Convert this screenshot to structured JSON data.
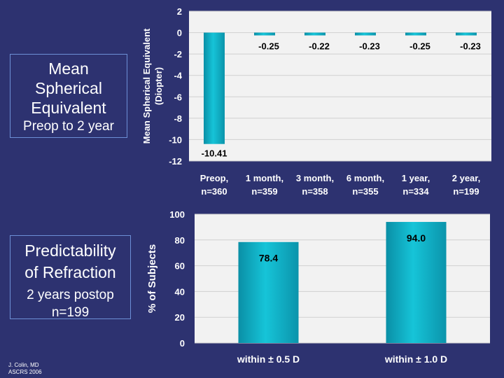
{
  "left_panel": {
    "box1_lines": [
      "Mean",
      "Spherical",
      "Equivalent"
    ],
    "box1_subtitle": "Preop to 2 year",
    "box2_lines": [
      "Predictability",
      "of Refraction"
    ],
    "box2_subtitle_lines": [
      "2 years postop",
      "n=199"
    ],
    "credit_lines": [
      "J. Colin, MD",
      "ASCRS 2006"
    ]
  },
  "colors": {
    "background": "#2d3270",
    "bar": "#16c4d8",
    "plot_bg": "#f2f2f2",
    "axis_text": "#ffffff",
    "value_text": "#000000"
  },
  "chart_data": [
    {
      "type": "bar",
      "title": "",
      "ylabel_lines": [
        "Mean Spherical Equivalent",
        "(Diopter)"
      ],
      "xlabel": "",
      "ylim": [
        -12,
        2
      ],
      "yticks": [
        2,
        0,
        -2,
        -4,
        -6,
        -8,
        -10,
        -12
      ],
      "categories": [
        [
          "Preop,",
          "n=360"
        ],
        [
          "1 month,",
          "n=359"
        ],
        [
          "3 month,",
          "n=358"
        ],
        [
          "6 month,",
          "n=355"
        ],
        [
          "1 year,",
          "n=334"
        ],
        [
          "2 year,",
          "n=199"
        ]
      ],
      "values": [
        -10.41,
        -0.25,
        -0.22,
        -0.23,
        -0.25,
        -0.23
      ],
      "value_labels": [
        "-10.41",
        "-0.25",
        "-0.22",
        "-0.23",
        "-0.25",
        "-0.23"
      ]
    },
    {
      "type": "bar",
      "title": "",
      "ylabel": "% of Subjects",
      "xlabel": "",
      "ylim": [
        0,
        100
      ],
      "yticks": [
        100,
        80,
        60,
        40,
        20,
        0
      ],
      "categories": [
        "within ± 0.5 D",
        "within ± 1.0 D"
      ],
      "values": [
        78.4,
        94.0
      ],
      "value_labels": [
        "78.4",
        "94.0"
      ]
    }
  ]
}
